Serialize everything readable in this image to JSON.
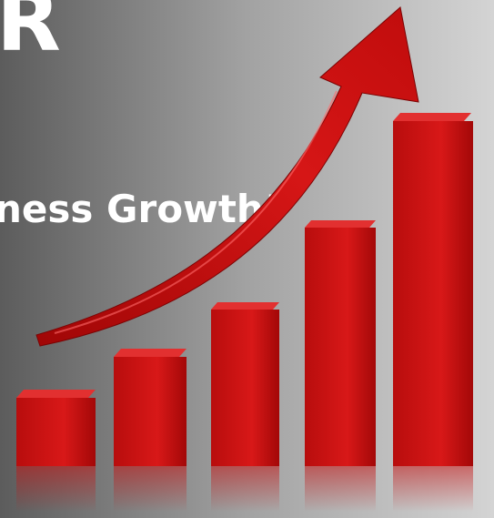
{
  "headline_fragment": "R",
  "tagline_fragment": "ness Growth”"
}
